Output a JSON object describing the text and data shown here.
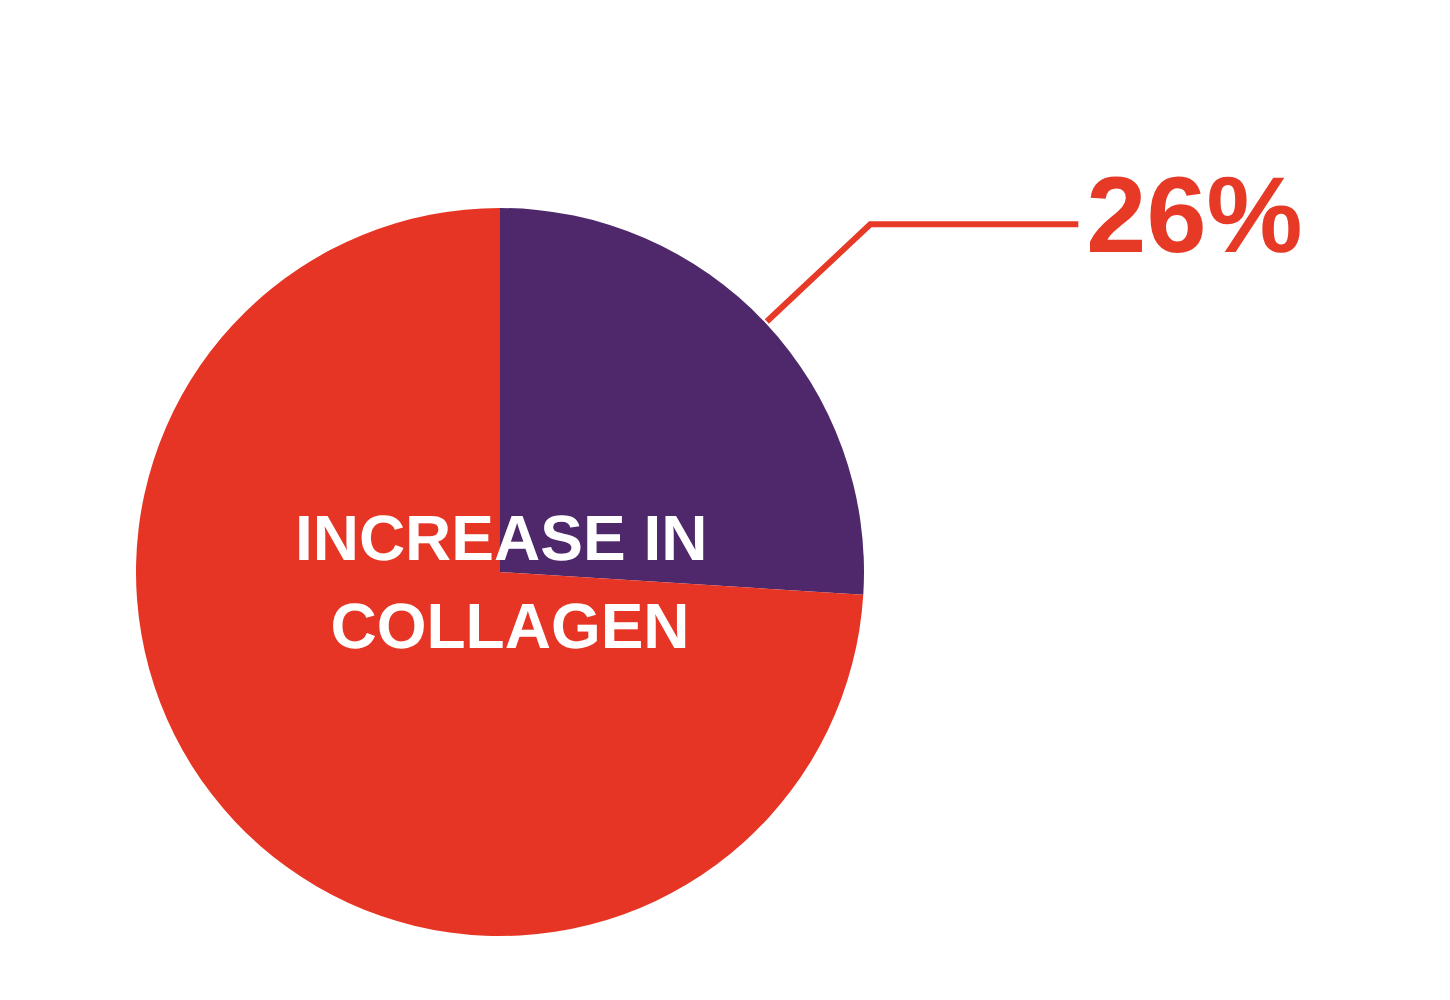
{
  "chart_data": {
    "type": "pie",
    "title": "INCREASE IN COLLAGEN",
    "categories": [
      null,
      null
    ],
    "values": [
      26,
      74
    ],
    "colors": [
      "#4e286b",
      "#e73525"
    ],
    "value_labels": [
      "26%",
      null
    ]
  }
}
